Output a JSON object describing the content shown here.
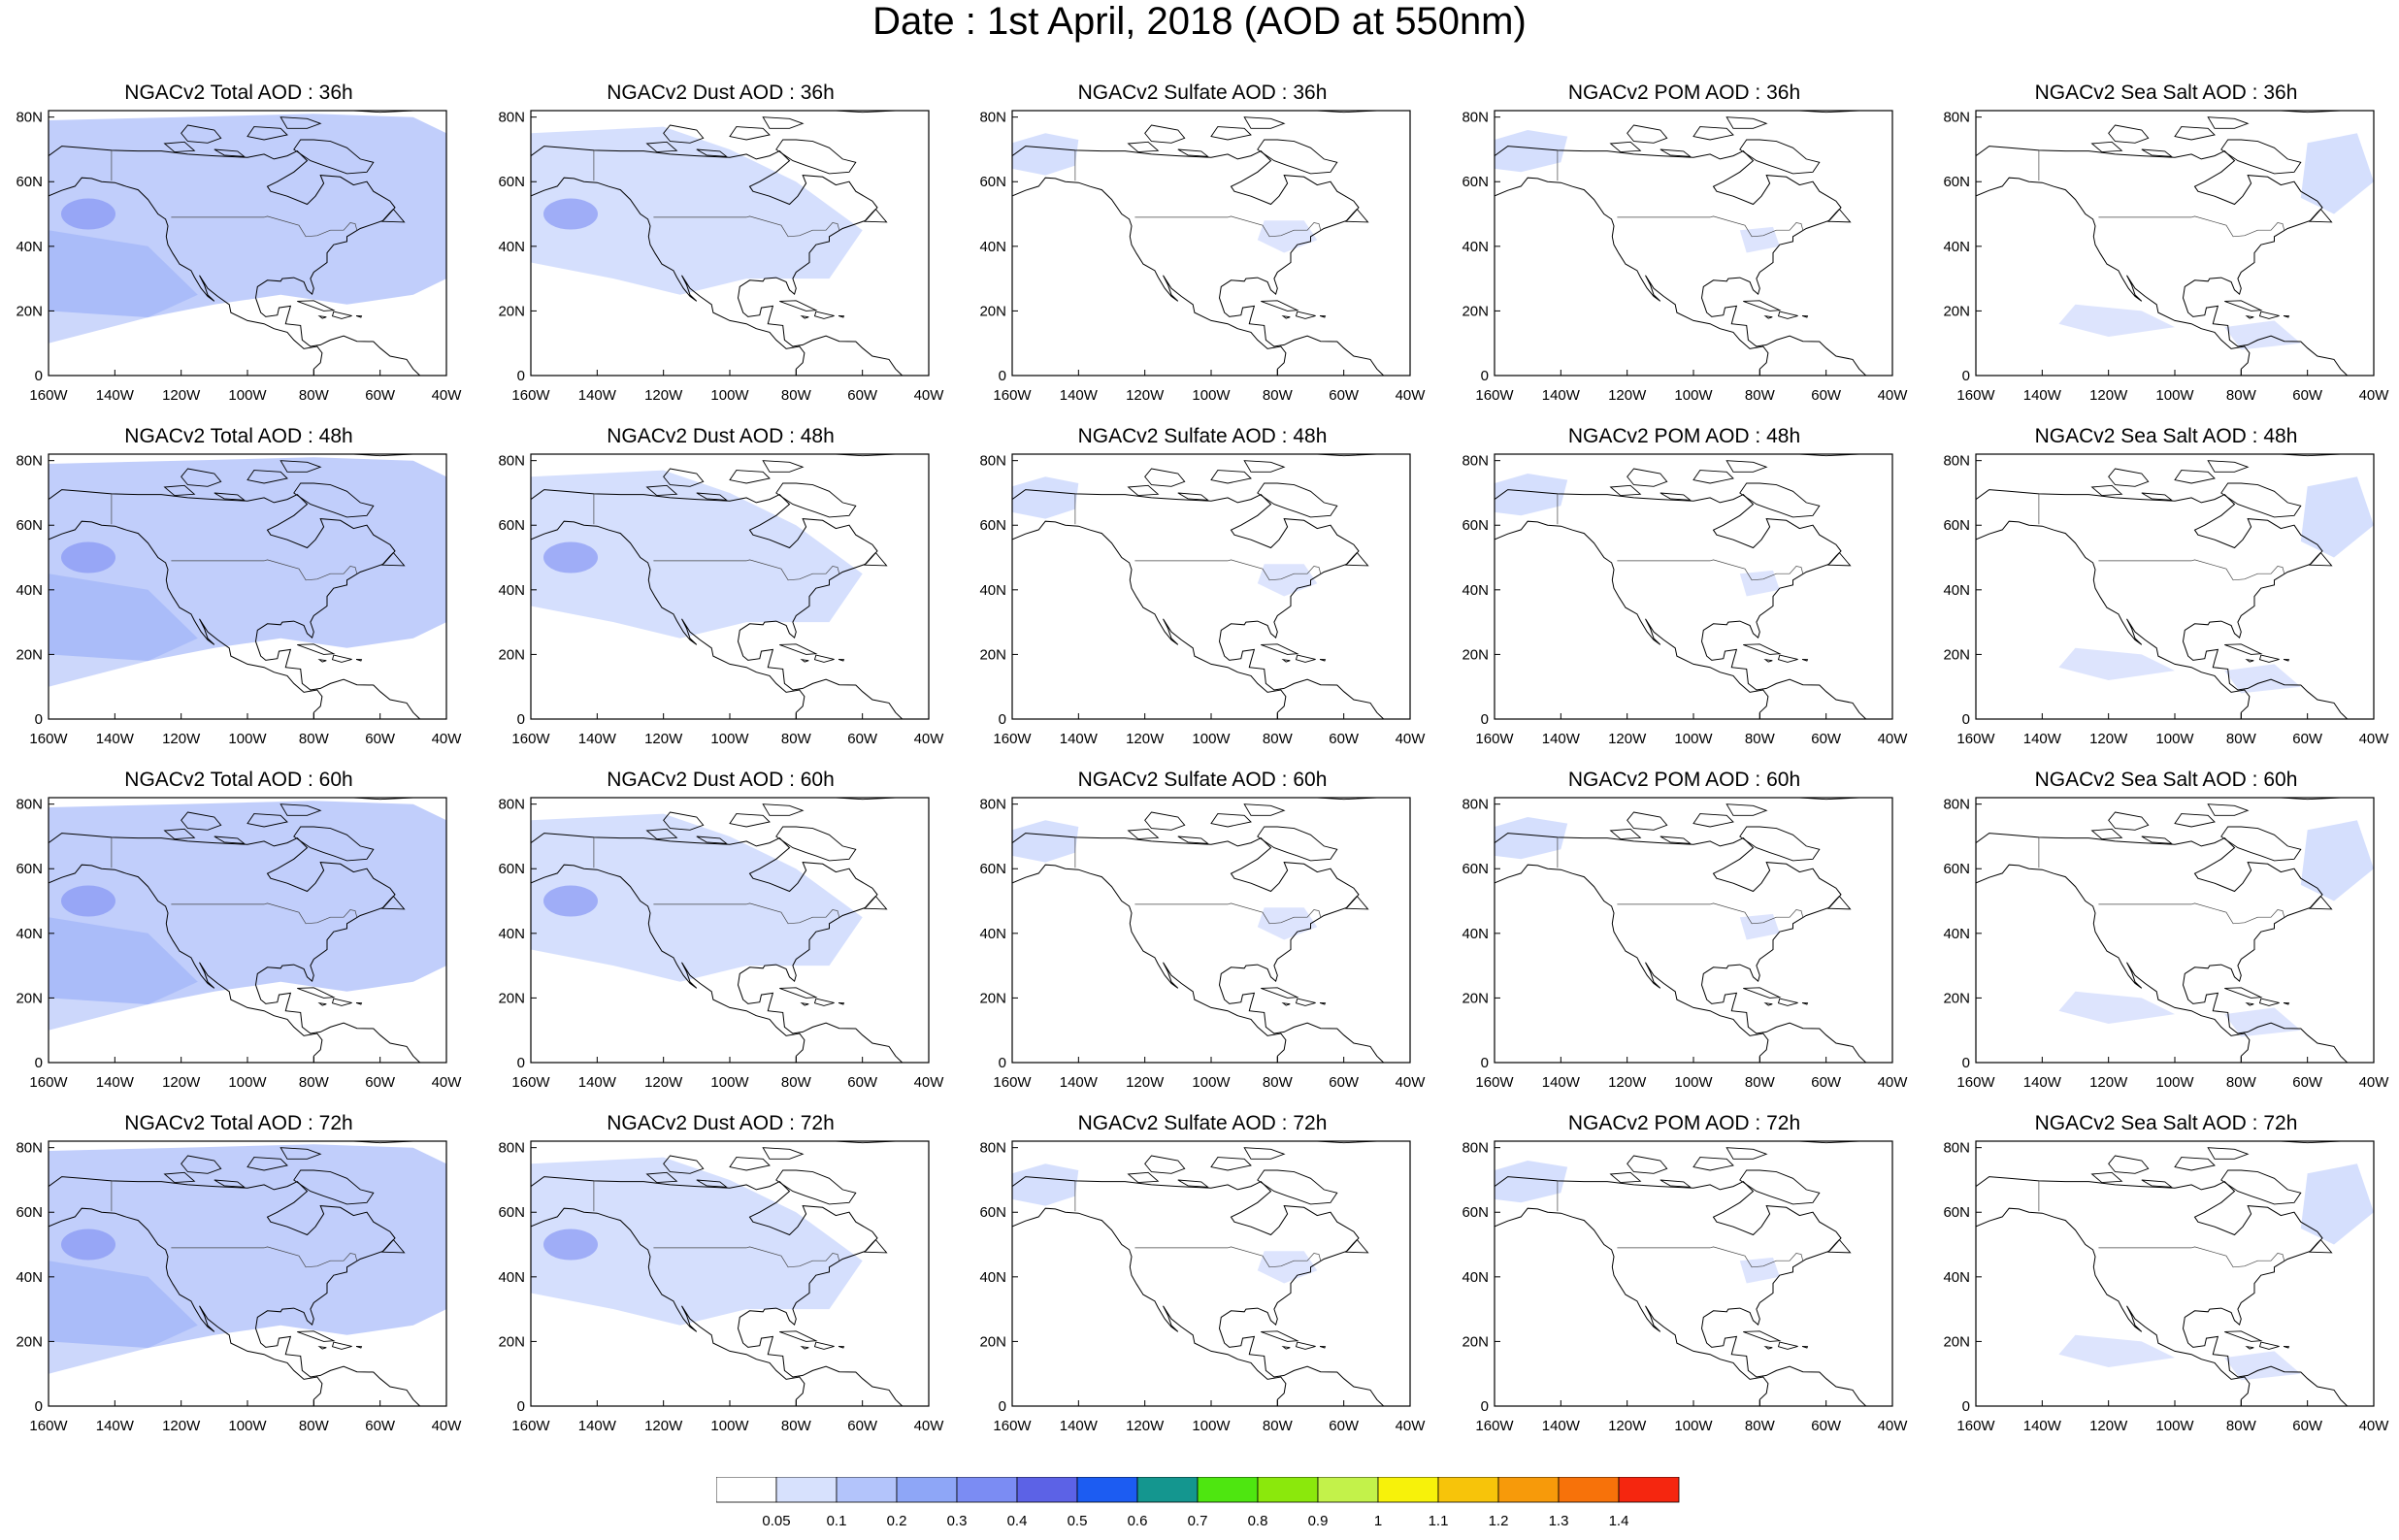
{
  "title": "Date : 1st April, 2018 (AOD at 550nm)",
  "axes": {
    "x_ticks": [
      "160W",
      "140W",
      "120W",
      "100W",
      "80W",
      "60W",
      "40W"
    ],
    "y_ticks": [
      "80N",
      "60N",
      "40N",
      "20N",
      "0"
    ]
  },
  "panels": [
    {
      "title": "NGACv2 Total AOD : 36h"
    },
    {
      "title": "NGACv2 Dust AOD : 36h"
    },
    {
      "title": "NGACv2 Sulfate AOD : 36h"
    },
    {
      "title": "NGACv2 POM AOD : 36h"
    },
    {
      "title": "NGACv2 Sea Salt AOD : 36h"
    },
    {
      "title": "NGACv2 Total AOD : 48h"
    },
    {
      "title": "NGACv2 Dust AOD : 48h"
    },
    {
      "title": "NGACv2 Sulfate AOD : 48h"
    },
    {
      "title": "NGACv2 POM AOD : 48h"
    },
    {
      "title": "NGACv2 Sea Salt AOD : 48h"
    },
    {
      "title": "NGACv2 Total AOD : 60h"
    },
    {
      "title": "NGACv2 Dust AOD : 60h"
    },
    {
      "title": "NGACv2 Sulfate AOD : 60h"
    },
    {
      "title": "NGACv2 POM AOD : 60h"
    },
    {
      "title": "NGACv2 Sea Salt AOD : 60h"
    },
    {
      "title": "NGACv2 Total AOD : 72h"
    },
    {
      "title": "NGACv2 Dust AOD : 72h"
    },
    {
      "title": "NGACv2 Sulfate AOD : 72h"
    },
    {
      "title": "NGACv2 POM AOD : 72h"
    },
    {
      "title": "NGACv2 Sea Salt  AOD : 72h"
    }
  ],
  "colorbar": {
    "labels": [
      "0.05",
      "0.1",
      "0.2",
      "0.3",
      "0.4",
      "0.5",
      "0.6",
      "0.7",
      "0.8",
      "0.9",
      "1",
      "1.1",
      "1.2",
      "1.3",
      "1.4"
    ],
    "colors": [
      "#ffffff",
      "#d7e1fd",
      "#b3c4fb",
      "#8ea6f7",
      "#7b8cf3",
      "#5c62e6",
      "#1c5cf2",
      "#14968f",
      "#4ee610",
      "#8be80c",
      "#c3f24a",
      "#f7f20a",
      "#f7c40a",
      "#f79a0a",
      "#f7720a",
      "#f5260f"
    ]
  },
  "aerosols": {
    "Total": "#8ea6f7",
    "Dust": "#b3c4fb",
    "Sulfate": "#b3c4fb",
    "POM": "#b3c4fb",
    "Sea Salt": "#b3c4fb"
  }
}
